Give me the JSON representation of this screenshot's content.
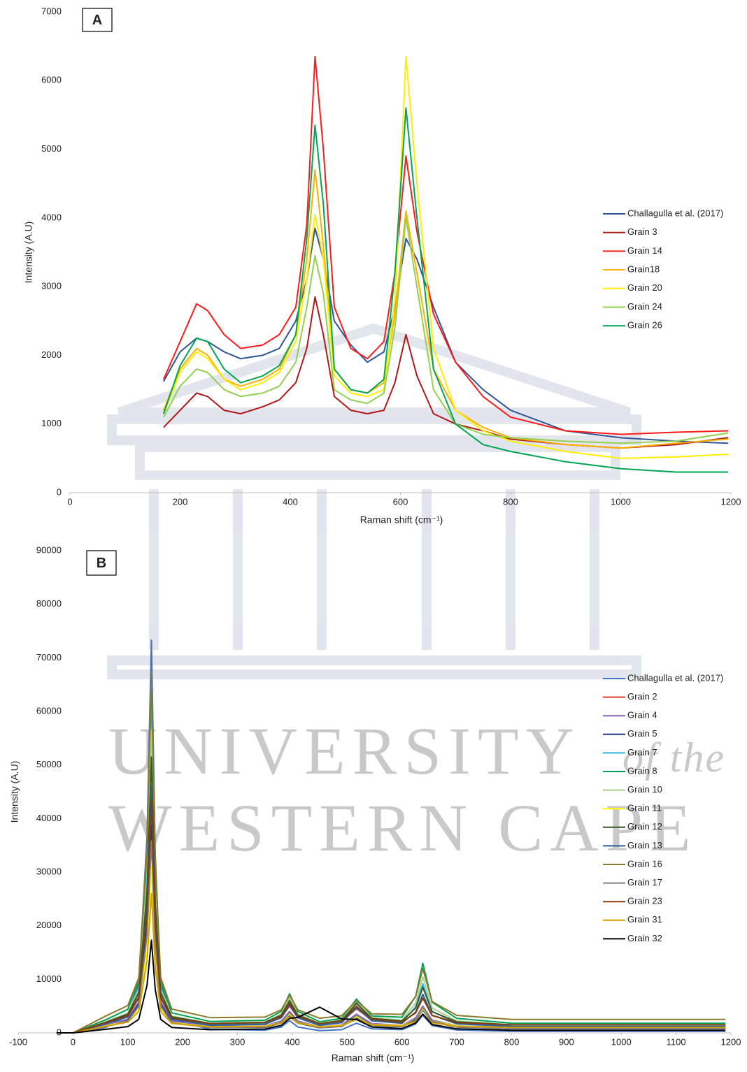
{
  "chart_data": [
    {
      "type": "line",
      "label": "A",
      "x_label": "Raman shift (cm⁻¹)",
      "y_label": "Intensity (A.U)",
      "legend": "right",
      "xlim": [
        0,
        1200
      ],
      "ylim": [
        0,
        7000
      ],
      "xticks": [
        0,
        200,
        400,
        600,
        800,
        1000,
        1200
      ],
      "yticks": [
        0,
        1000,
        2000,
        3000,
        4000,
        5000,
        6000,
        7000
      ],
      "x": [
        170,
        200,
        230,
        250,
        280,
        310,
        350,
        380,
        410,
        430,
        445,
        460,
        480,
        510,
        540,
        570,
        590,
        610,
        630,
        660,
        700,
        750,
        800,
        900,
        1000,
        1100,
        1195
      ],
      "series": [
        {
          "name": "Challagulla et al. (2017)",
          "color": "#2f5597",
          "values": [
            1620,
            2050,
            2250,
            2200,
            2050,
            1950,
            2000,
            2100,
            2500,
            3100,
            3850,
            3400,
            2500,
            2150,
            1900,
            2050,
            2700,
            3700,
            3400,
            2700,
            1900,
            1500,
            1200,
            900,
            800,
            750,
            720
          ]
        },
        {
          "name": "Grain 3",
          "color": "#b01818",
          "values": [
            950,
            1200,
            1450,
            1400,
            1200,
            1150,
            1250,
            1350,
            1600,
            2100,
            2850,
            2300,
            1400,
            1200,
            1150,
            1200,
            1600,
            2300,
            1700,
            1150,
            1000,
            900,
            780,
            700,
            650,
            700,
            800
          ]
        },
        {
          "name": "Grain 14",
          "color": "#ff1a1a",
          "values": [
            1650,
            2200,
            2750,
            2650,
            2300,
            2100,
            2150,
            2300,
            2700,
            3900,
            6350,
            5000,
            2700,
            2100,
            1950,
            2200,
            3200,
            4900,
            3800,
            2600,
            1900,
            1400,
            1100,
            900,
            850,
            880,
            900
          ]
        },
        {
          "name": "Grain18",
          "color": "#ffb000",
          "values": [
            1200,
            1800,
            2100,
            2000,
            1650,
            1550,
            1650,
            1800,
            2300,
            3400,
            4700,
            3600,
            1800,
            1500,
            1450,
            1600,
            2600,
            4100,
            3200,
            1800,
            1200,
            950,
            800,
            700,
            650,
            720,
            780
          ]
        },
        {
          "name": "Grain 20",
          "color": "#ffee00",
          "values": [
            1150,
            1750,
            2050,
            1950,
            1650,
            1500,
            1600,
            1750,
            2200,
            3100,
            4050,
            3400,
            1700,
            1450,
            1400,
            1500,
            2800,
            6350,
            4500,
            2100,
            1200,
            900,
            750,
            600,
            500,
            520,
            560
          ]
        },
        {
          "name": "Grain 24",
          "color": "#92d050",
          "values": [
            1100,
            1550,
            1800,
            1750,
            1500,
            1400,
            1450,
            1550,
            1900,
            2700,
            3450,
            2900,
            1500,
            1350,
            1300,
            1450,
            2400,
            4000,
            3000,
            1500,
            1000,
            850,
            800,
            750,
            720,
            750,
            870
          ]
        },
        {
          "name": "Grain 26",
          "color": "#00a651",
          "values": [
            1150,
            1850,
            2250,
            2200,
            1800,
            1600,
            1700,
            1850,
            2300,
            3700,
            5350,
            4200,
            1800,
            1500,
            1450,
            1650,
            3200,
            5600,
            4000,
            1800,
            1000,
            700,
            600,
            450,
            350,
            300,
            300
          ]
        }
      ]
    },
    {
      "type": "line",
      "label": "B",
      "x_label": "Raman shift (cm⁻¹)",
      "y_label": "Intensity (A.U)",
      "legend": "right",
      "xlim": [
        -100,
        1200
      ],
      "ylim": [
        0,
        90000
      ],
      "xticks": [
        -100,
        0,
        100,
        200,
        300,
        400,
        500,
        600,
        700,
        800,
        900,
        1000,
        1100,
        1200
      ],
      "yticks": [
        0,
        10000,
        20000,
        30000,
        40000,
        50000,
        60000,
        70000,
        80000,
        90000
      ],
      "x": [
        -30,
        0,
        60,
        100,
        120,
        135,
        143,
        150,
        160,
        180,
        250,
        350,
        380,
        395,
        410,
        450,
        490,
        517,
        545,
        600,
        625,
        638,
        655,
        700,
        800,
        1000,
        1190
      ],
      "series": [
        {
          "name": "Challagulla et al. (2017)",
          "color": "#4472c4",
          "values": [
            0,
            0,
            1030,
            3220,
            9060,
            36800,
            73300,
            33150,
            9060,
            2490,
            665,
            500,
            1100,
            2300,
            1100,
            400,
            600,
            1800,
            750,
            600,
            1650,
            3300,
            1350,
            540,
            300,
            300,
            300
          ]
        },
        {
          "name": "Grain 2",
          "color": "#e03c31",
          "values": [
            0,
            0,
            1940,
            3260,
            6780,
            23500,
            45500,
            21300,
            6780,
            2820,
            1720,
            1850,
            2900,
            5000,
            2900,
            1675,
            2100,
            4500,
            2400,
            2000,
            3750,
            6500,
            3250,
            1900,
            1500,
            1500,
            1500
          ]
        },
        {
          "name": "Grain 4",
          "color": "#8e63c4",
          "values": [
            0,
            0,
            1400,
            2600,
            5800,
            21000,
            41000,
            19000,
            5800,
            2200,
            1200,
            1300,
            2200,
            4000,
            2200,
            1150,
            1500,
            3500,
            1750,
            1400,
            2800,
            5000,
            2400,
            1320,
            1000,
            1000,
            1000
          ]
        },
        {
          "name": "Grain 5",
          "color": "#203880",
          "values": [
            0,
            0,
            1180,
            2320,
            5360,
            19800,
            38800,
            17900,
            5360,
            1940,
            990,
            1050,
            1800,
            3300,
            1800,
            925,
            1200,
            2800,
            1400,
            1150,
            2375,
            4300,
            2025,
            1080,
            800,
            800,
            800
          ]
        },
        {
          "name": "Grain 7",
          "color": "#2eb5e6",
          "values": [
            0,
            0,
            1800,
            3600,
            8400,
            31200,
            61200,
            28200,
            8400,
            3000,
            1500,
            1700,
            3200,
            6200,
            3200,
            1450,
            2100,
            5700,
            2550,
            2000,
            4800,
            9200,
            4000,
            1840,
            1200,
            1200,
            1200
          ]
        },
        {
          "name": "Grain 8",
          "color": "#00a050",
          "values": [
            0,
            0,
            2450,
            4400,
            9600,
            34300,
            66800,
            31050,
            9600,
            3750,
            2125,
            2350,
            4000,
            7300,
            4000,
            2075,
            2700,
            6300,
            3150,
            2920,
            6840,
            13000,
            5720,
            2700,
            1800,
            1800,
            1800
          ]
        },
        {
          "name": "Grain 10",
          "color": "#a9d18e",
          "values": [
            0,
            0,
            2050,
            3700,
            8100,
            29000,
            56500,
            26250,
            8100,
            3150,
            1775,
            2000,
            3500,
            6500,
            3500,
            1750,
            2400,
            6000,
            2850,
            2400,
            5550,
            10500,
            4650,
            2220,
            1500,
            1500,
            1500
          ]
        },
        {
          "name": "Grain 11",
          "color": "#ffff00",
          "values": [
            0,
            0,
            1300,
            2200,
            4600,
            16000,
            31000,
            14500,
            4600,
            1900,
            1150,
            1250,
            2000,
            3500,
            2000,
            1125,
            1400,
            3000,
            1600,
            1350,
            2575,
            4500,
            2225,
            1280,
            1000,
            1000,
            1000
          ]
        },
        {
          "name": "Grain 12",
          "color": "#375623",
          "values": [
            0,
            0,
            2000,
            3500,
            7500,
            26500,
            51500,
            24000,
            7500,
            3000,
            1750,
            1950,
            3300,
            6000,
            3300,
            1725,
            2300,
            5500,
            2700,
            2200,
            4650,
            8500,
            3950,
            2060,
            1500,
            1500,
            1500
          ]
        },
        {
          "name": "Grain 13",
          "color": "#2e5f96",
          "values": [
            0,
            0,
            1650,
            3000,
            6600,
            23700,
            46200,
            21450,
            6600,
            2550,
            1425,
            1600,
            2800,
            5200,
            2800,
            1400,
            1900,
            4700,
            2250,
            1800,
            3900,
            7200,
            3300,
            1680,
            1200,
            1200,
            1200
          ]
        },
        {
          "name": "Grain 16",
          "color": "#8c7a2a",
          "values": [
            0,
            0,
            3150,
            5100,
            10300,
            35000,
            67500,
            31750,
            10300,
            4450,
            2825,
            2950,
            4300,
            7000,
            4300,
            2725,
            3200,
            6000,
            3550,
            3450,
            6775,
            12000,
            5825,
            3260,
            2500,
            2500,
            2500
          ]
        },
        {
          "name": "Grain 17",
          "color": "#7f7f7f",
          "values": [
            0,
            0,
            1150,
            2200,
            5000,
            18300,
            35800,
            16550,
            5000,
            1850,
            975,
            1100,
            2000,
            3800,
            2000,
            950,
            1300,
            3300,
            1550,
            1200,
            2600,
            4800,
            2200,
            1120,
            800,
            800,
            800
          ]
        },
        {
          "name": "Grain 23",
          "color": "#843c0c",
          "values": [
            0,
            0,
            1920,
            3180,
            6540,
            22500,
            43500,
            20400,
            6540,
            2760,
            1710,
            1900,
            3100,
            5500,
            3100,
            1700,
            2200,
            5000,
            2550,
            2000,
            3750,
            6500,
            3250,
            1900,
            1500,
            1500,
            1500
          ]
        },
        {
          "name": "Grain 31",
          "color": "#d4a000",
          "values": [
            0,
            0,
            1250,
            2000,
            4000,
            13500,
            26000,
            12250,
            4000,
            1750,
            1125,
            1200,
            1800,
            3000,
            1800,
            1100,
            1300,
            2500,
            1450,
            1250,
            2125,
            3500,
            1875,
            1200,
            1000,
            1000,
            1000
          ]
        },
        {
          "name": "Grain 32",
          "color": "#000000",
          "values": [
            0,
            0,
            670,
            1170,
            2520,
            8900,
            17300,
            8060,
            2520,
            1000,
            584,
            720,
            1380,
            2700,
            2900,
            4800,
            2600,
            2500,
            1100,
            800,
            1850,
            3500,
            1550,
            740,
            500,
            500,
            500
          ]
        }
      ]
    }
  ],
  "watermark": {
    "lines": [
      "UNIVERSITY",
      "of the",
      "WESTERN CAPE"
    ]
  }
}
